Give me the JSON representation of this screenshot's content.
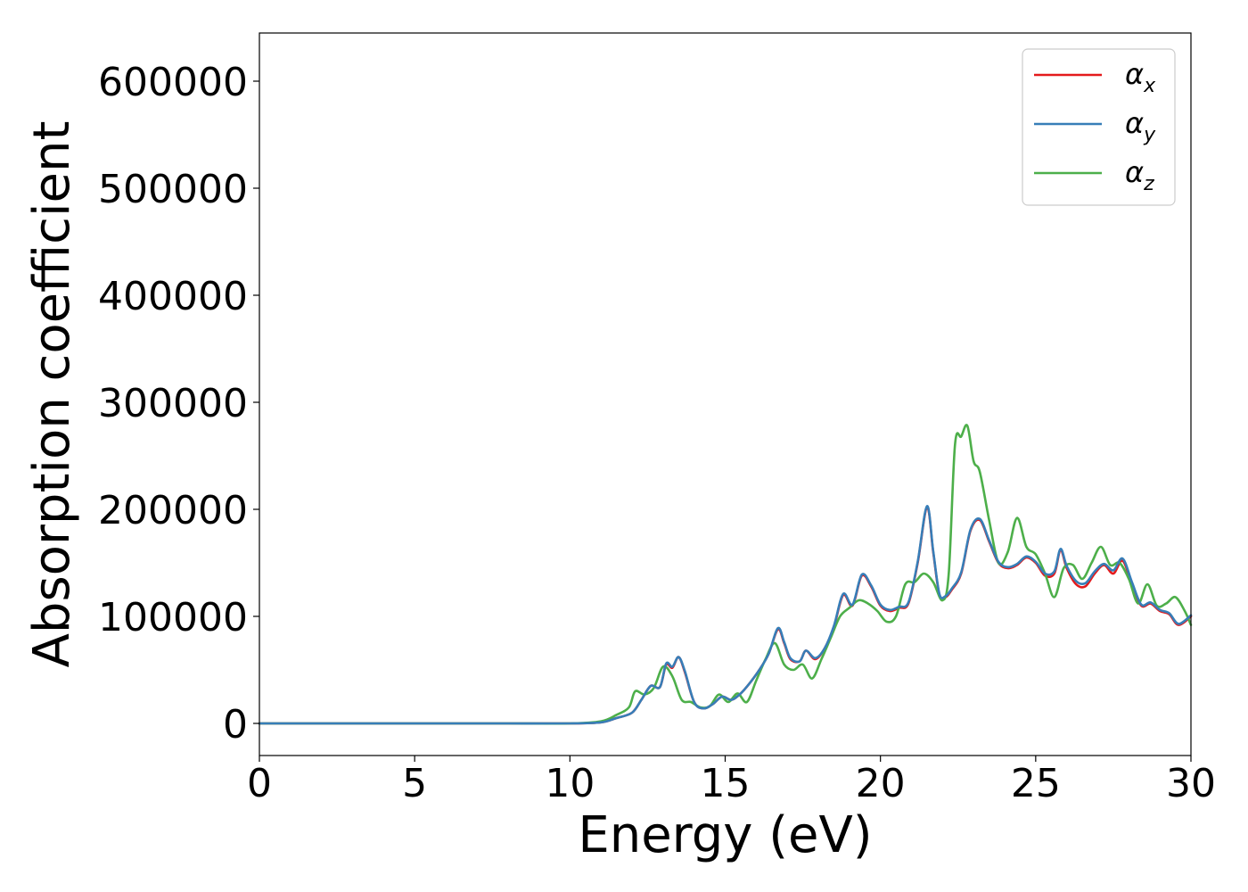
{
  "chart_data": {
    "type": "line",
    "title": "",
    "xlabel": "Energy (eV)",
    "ylabel": "Absorption coefficient",
    "xlim": [
      0,
      30
    ],
    "ylim": [
      -30000,
      645000
    ],
    "xticks": [
      0,
      5,
      10,
      15,
      20,
      25,
      30
    ],
    "yticks": [
      0,
      100000,
      200000,
      300000,
      400000,
      500000,
      600000
    ],
    "grid": false,
    "legend_position": "top-right",
    "series": [
      {
        "name": "α",
        "subscript": "x",
        "color": "#e41a1c",
        "x": [
          0,
          2,
          4,
          6,
          8,
          10,
          11,
          11.5,
          12,
          12.3,
          12.6,
          12.9,
          13.1,
          13.3,
          13.5,
          13.7,
          14,
          14.3,
          14.6,
          14.9,
          15.2,
          15.5,
          15.8,
          16.1,
          16.4,
          16.7,
          16.9,
          17.1,
          17.4,
          17.6,
          17.9,
          18.2,
          18.5,
          18.8,
          19.1,
          19.4,
          19.7,
          20,
          20.3,
          20.6,
          20.9,
          21.2,
          21.5,
          21.7,
          21.9,
          22.1,
          22.3,
          22.6,
          22.9,
          23.2,
          23.5,
          23.8,
          24.1,
          24.4,
          24.7,
          25,
          25.3,
          25.6,
          25.8,
          26,
          26.3,
          26.6,
          26.9,
          27.2,
          27.5,
          27.8,
          28.1,
          28.4,
          28.7,
          29,
          29.3,
          29.6,
          30
        ],
        "y": [
          0,
          0,
          0,
          0,
          0,
          0,
          1000,
          5000,
          10000,
          22000,
          35000,
          34000,
          55000,
          52000,
          62000,
          48000,
          20000,
          14000,
          18000,
          25000,
          22000,
          28000,
          38000,
          50000,
          65000,
          88000,
          75000,
          60000,
          58000,
          68000,
          60000,
          70000,
          90000,
          120000,
          110000,
          138000,
          128000,
          110000,
          105000,
          108000,
          112000,
          150000,
          202000,
          160000,
          120000,
          118000,
          125000,
          140000,
          180000,
          190000,
          170000,
          150000,
          145000,
          148000,
          155000,
          150000,
          138000,
          140000,
          162000,
          145000,
          130000,
          128000,
          140000,
          148000,
          140000,
          152000,
          130000,
          110000,
          112000,
          105000,
          102000,
          92000,
          100000
        ]
      },
      {
        "name": "α",
        "subscript": "y",
        "color": "#377eb8",
        "x": [
          0,
          2,
          4,
          6,
          8,
          10,
          11,
          11.5,
          12,
          12.3,
          12.6,
          12.9,
          13.1,
          13.3,
          13.5,
          13.7,
          14,
          14.3,
          14.6,
          14.9,
          15.2,
          15.5,
          15.8,
          16.1,
          16.4,
          16.7,
          16.9,
          17.1,
          17.4,
          17.6,
          17.9,
          18.2,
          18.5,
          18.8,
          19.1,
          19.4,
          19.7,
          20,
          20.3,
          20.6,
          20.9,
          21.2,
          21.5,
          21.7,
          21.9,
          22.1,
          22.3,
          22.6,
          22.9,
          23.2,
          23.5,
          23.8,
          24.1,
          24.4,
          24.7,
          25,
          25.3,
          25.6,
          25.8,
          26,
          26.3,
          26.6,
          26.9,
          27.2,
          27.5,
          27.8,
          28.1,
          28.4,
          28.7,
          29,
          29.3,
          29.6,
          30
        ],
        "y": [
          0,
          0,
          0,
          0,
          0,
          0,
          1000,
          5000,
          10000,
          22000,
          35000,
          34000,
          56000,
          53000,
          62000,
          49000,
          20000,
          14000,
          18000,
          25000,
          22000,
          28000,
          38000,
          50000,
          65000,
          89000,
          76000,
          61000,
          58000,
          68000,
          61000,
          70000,
          91000,
          121000,
          111000,
          139000,
          129000,
          111000,
          106000,
          109000,
          113000,
          151000,
          203000,
          161000,
          121000,
          119000,
          126000,
          141000,
          181000,
          191000,
          171000,
          151000,
          146000,
          149000,
          156000,
          151000,
          140000,
          142000,
          163000,
          147000,
          133000,
          131000,
          142000,
          149000,
          143000,
          154000,
          132000,
          111000,
          113000,
          106000,
          103000,
          93000,
          101000
        ]
      },
      {
        "name": "α",
        "subscript": "z",
        "color": "#4daf4a",
        "x": [
          0,
          2,
          4,
          6,
          8,
          10,
          11,
          11.5,
          11.9,
          12.1,
          12.4,
          12.7,
          13,
          13.3,
          13.6,
          13.9,
          14.2,
          14.5,
          14.8,
          15.1,
          15.4,
          15.7,
          16,
          16.3,
          16.6,
          16.9,
          17.2,
          17.5,
          17.8,
          18.1,
          18.4,
          18.7,
          19,
          19.3,
          19.6,
          19.9,
          20.2,
          20.5,
          20.8,
          21.1,
          21.4,
          21.7,
          22,
          22.2,
          22.4,
          22.6,
          22.8,
          23,
          23.2,
          23.5,
          23.8,
          24.1,
          24.4,
          24.7,
          25,
          25.3,
          25.6,
          25.9,
          26.2,
          26.5,
          26.8,
          27.1,
          27.4,
          27.7,
          28,
          28.3,
          28.6,
          28.9,
          29.2,
          29.5,
          29.8,
          30
        ],
        "y": [
          0,
          0,
          0,
          0,
          0,
          0,
          2000,
          8000,
          15000,
          30000,
          27000,
          33000,
          53000,
          44000,
          22000,
          20000,
          15000,
          16000,
          27000,
          20000,
          28000,
          20000,
          40000,
          60000,
          75000,
          55000,
          50000,
          55000,
          42000,
          60000,
          80000,
          100000,
          108000,
          115000,
          112000,
          105000,
          95000,
          100000,
          130000,
          132000,
          140000,
          132000,
          115000,
          140000,
          260000,
          268000,
          278000,
          245000,
          235000,
          190000,
          150000,
          160000,
          192000,
          165000,
          158000,
          140000,
          118000,
          145000,
          148000,
          135000,
          150000,
          165000,
          148000,
          150000,
          135000,
          112000,
          130000,
          110000,
          112000,
          118000,
          105000,
          92000
        ]
      }
    ]
  }
}
